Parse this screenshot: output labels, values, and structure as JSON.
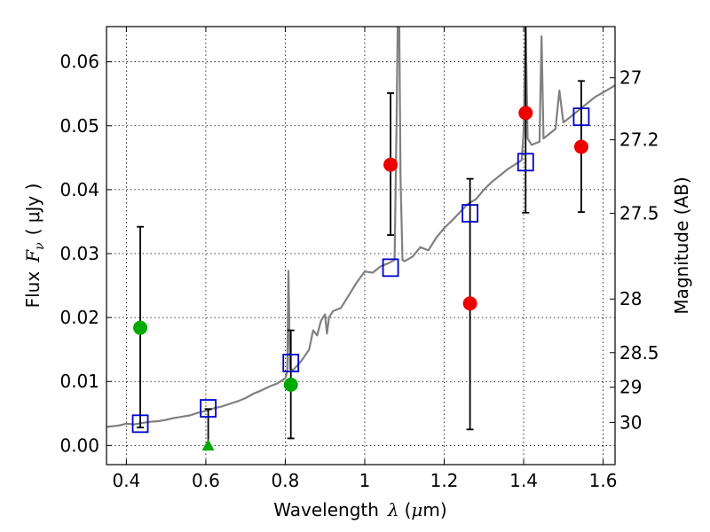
{
  "chart_data": {
    "type": "scatter",
    "xlabel_prefix": "Wavelength",
    "xlabel_symbol": "λ",
    "xlabel_unit_open": "(",
    "xlabel_unit_mu": "μ",
    "xlabel_unit_rest": "m)",
    "ylabel_prefix": "Flux",
    "ylabel_symbol": "F",
    "ylabel_subscript": "ν",
    "ylabel_unit": "( μJy )",
    "y2label": "Magnitude (AB)",
    "xlim": [
      0.35,
      1.63
    ],
    "ylim": [
      -0.003,
      0.0655
    ],
    "grid": true,
    "xticks": [
      {
        "value": 0.4,
        "label": "0.4"
      },
      {
        "value": 0.6,
        "label": "0.6"
      },
      {
        "value": 0.8,
        "label": "0.8"
      },
      {
        "value": 1.0,
        "label": "1"
      },
      {
        "value": 1.2,
        "label": "1.2"
      },
      {
        "value": 1.4,
        "label": "1.4"
      },
      {
        "value": 1.6,
        "label": "1.6"
      }
    ],
    "yticks": [
      {
        "value": 0.0,
        "label": "0.00"
      },
      {
        "value": 0.01,
        "label": "0.01"
      },
      {
        "value": 0.02,
        "label": "0.02"
      },
      {
        "value": 0.03,
        "label": "0.03"
      },
      {
        "value": 0.04,
        "label": "0.04"
      },
      {
        "value": 0.05,
        "label": "0.05"
      },
      {
        "value": 0.06,
        "label": "0.06"
      }
    ],
    "y2ticks": [
      {
        "label": "27",
        "flux": 0.0575
      },
      {
        "label": "27.2",
        "flux": 0.0478
      },
      {
        "label": "27.5",
        "flux": 0.0363
      },
      {
        "label": "28",
        "flux": 0.0229
      },
      {
        "label": "28.5",
        "flux": 0.0145
      },
      {
        "label": "29",
        "flux": 0.0091
      },
      {
        "label": "30",
        "flux": 0.0036
      }
    ],
    "spectrum_color": "#808080",
    "spectrum": [
      [
        0.35,
        0.0029
      ],
      [
        0.38,
        0.0031
      ],
      [
        0.4,
        0.0034
      ],
      [
        0.42,
        0.0033
      ],
      [
        0.44,
        0.0035
      ],
      [
        0.46,
        0.0037
      ],
      [
        0.48,
        0.0038
      ],
      [
        0.5,
        0.004
      ],
      [
        0.52,
        0.0043
      ],
      [
        0.54,
        0.0045
      ],
      [
        0.56,
        0.0047
      ],
      [
        0.58,
        0.0051
      ],
      [
        0.6,
        0.0054
      ],
      [
        0.62,
        0.0058
      ],
      [
        0.64,
        0.0061
      ],
      [
        0.66,
        0.0065
      ],
      [
        0.68,
        0.0069
      ],
      [
        0.7,
        0.0074
      ],
      [
        0.72,
        0.0081
      ],
      [
        0.74,
        0.0086
      ],
      [
        0.76,
        0.0092
      ],
      [
        0.78,
        0.0097
      ],
      [
        0.8,
        0.0105
      ],
      [
        0.805,
        0.0115
      ],
      [
        0.808,
        0.0273
      ],
      [
        0.812,
        0.012
      ],
      [
        0.82,
        0.0118
      ],
      [
        0.84,
        0.0132
      ],
      [
        0.86,
        0.015
      ],
      [
        0.87,
        0.018
      ],
      [
        0.88,
        0.0172
      ],
      [
        0.89,
        0.0195
      ],
      [
        0.9,
        0.0205
      ],
      [
        0.905,
        0.0175
      ],
      [
        0.91,
        0.02
      ],
      [
        0.92,
        0.021
      ],
      [
        0.94,
        0.0215
      ],
      [
        0.96,
        0.0235
      ],
      [
        0.98,
        0.0255
      ],
      [
        1.0,
        0.0272
      ],
      [
        1.02,
        0.027
      ],
      [
        1.04,
        0.028
      ],
      [
        1.06,
        0.0285
      ],
      [
        1.075,
        0.029
      ],
      [
        1.08,
        0.05
      ],
      [
        1.083,
        0.0655
      ],
      [
        1.087,
        0.0655
      ],
      [
        1.09,
        0.042
      ],
      [
        1.095,
        0.029
      ],
      [
        1.1,
        0.0288
      ],
      [
        1.12,
        0.0295
      ],
      [
        1.14,
        0.031
      ],
      [
        1.16,
        0.0305
      ],
      [
        1.18,
        0.0325
      ],
      [
        1.2,
        0.034
      ],
      [
        1.22,
        0.0352
      ],
      [
        1.24,
        0.0365
      ],
      [
        1.26,
        0.0378
      ],
      [
        1.28,
        0.0385
      ],
      [
        1.3,
        0.04
      ],
      [
        1.32,
        0.0412
      ],
      [
        1.34,
        0.0422
      ],
      [
        1.36,
        0.0432
      ],
      [
        1.38,
        0.044
      ],
      [
        1.395,
        0.0446
      ],
      [
        1.4,
        0.049
      ],
      [
        1.405,
        0.0655
      ],
      [
        1.41,
        0.048
      ],
      [
        1.42,
        0.047
      ],
      [
        1.44,
        0.0475
      ],
      [
        1.445,
        0.064
      ],
      [
        1.45,
        0.048
      ],
      [
        1.46,
        0.0485
      ],
      [
        1.48,
        0.0495
      ],
      [
        1.49,
        0.0555
      ],
      [
        1.5,
        0.0505
      ],
      [
        1.52,
        0.0515
      ],
      [
        1.54,
        0.0525
      ],
      [
        1.56,
        0.0535
      ],
      [
        1.58,
        0.0545
      ],
      [
        1.6,
        0.0552
      ],
      [
        1.63,
        0.0563
      ]
    ],
    "model_photometry": {
      "color": "#0000cc",
      "points": [
        {
          "x": 0.435,
          "y": 0.0034
        },
        {
          "x": 0.606,
          "y": 0.0058
        },
        {
          "x": 0.814,
          "y": 0.0129
        },
        {
          "x": 1.065,
          "y": 0.0278
        },
        {
          "x": 1.265,
          "y": 0.0363
        },
        {
          "x": 1.405,
          "y": 0.0443
        },
        {
          "x": 1.545,
          "y": 0.0514
        }
      ]
    },
    "observed": [
      {
        "x": 0.435,
        "y": 0.0184,
        "err_lo": 0.0028,
        "err_hi": 0.0342,
        "color": "#00aa00",
        "marker": "circle"
      },
      {
        "x": 0.606,
        "y": -0.0001,
        "err_lo": -0.0001,
        "err_hi": 0.0057,
        "color": "#00aa00",
        "marker": "triangle"
      },
      {
        "x": 0.814,
        "y": 0.0095,
        "err_lo": 0.0011,
        "err_hi": 0.018,
        "color": "#00aa00",
        "marker": "circle"
      },
      {
        "x": 1.065,
        "y": 0.0439,
        "err_lo": 0.0329,
        "err_hi": 0.0551,
        "color": "#ee0000",
        "marker": "circle"
      },
      {
        "x": 1.265,
        "y": 0.0222,
        "err_lo": 0.0025,
        "err_hi": 0.0417,
        "color": "#ee0000",
        "marker": "circle"
      },
      {
        "x": 1.405,
        "y": 0.052,
        "err_lo": 0.0364,
        "err_hi": 0.066,
        "color": "#ee0000",
        "marker": "circle"
      },
      {
        "x": 1.545,
        "y": 0.0467,
        "err_lo": 0.0365,
        "err_hi": 0.057,
        "color": "#ee0000",
        "marker": "circle"
      }
    ]
  }
}
